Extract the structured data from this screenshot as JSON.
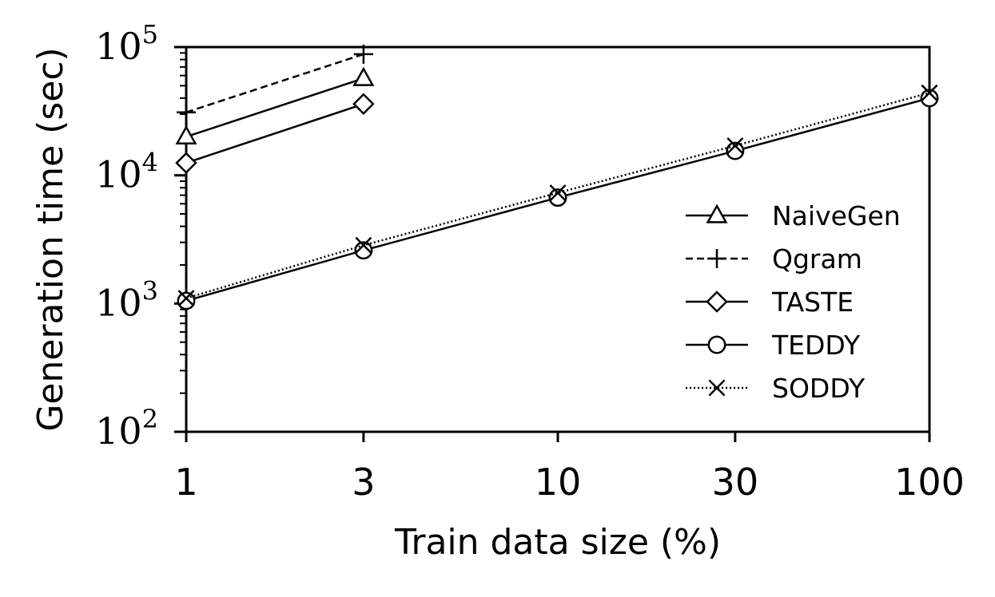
{
  "chart_data": {
    "type": "line",
    "xlabel": "Train data size (%)",
    "ylabel": "Generation time (sec)",
    "x_scale": "log",
    "y_scale": "log",
    "xlim": [
      1,
      100
    ],
    "ylim": [
      100,
      100000
    ],
    "x_ticks": [
      {
        "value": 1,
        "label": "1"
      },
      {
        "value": 3,
        "label": "3"
      },
      {
        "value": 10,
        "label": "10"
      },
      {
        "value": 30,
        "label": "30"
      },
      {
        "value": 100,
        "label": "100"
      }
    ],
    "y_ticks": [
      {
        "value": 100,
        "base": "10",
        "exp": "2"
      },
      {
        "value": 1000,
        "base": "10",
        "exp": "3"
      },
      {
        "value": 10000,
        "base": "10",
        "exp": "4"
      },
      {
        "value": 100000,
        "base": "10",
        "exp": "5"
      }
    ],
    "grid": false,
    "legend_position": "center-right",
    "series": [
      {
        "name": "NaiveGen",
        "marker": "triangle",
        "line": "solid",
        "x": [
          1,
          3
        ],
        "y": [
          20000,
          57000
        ]
      },
      {
        "name": "Qgram",
        "marker": "plus",
        "line": "dashed",
        "x": [
          1,
          3
        ],
        "y": [
          31000,
          88000
        ]
      },
      {
        "name": "TASTE",
        "marker": "diamond",
        "line": "solid",
        "x": [
          1,
          3
        ],
        "y": [
          12500,
          36000
        ]
      },
      {
        "name": "TEDDY",
        "marker": "circle",
        "line": "solid",
        "x": [
          1,
          3,
          10,
          30,
          100
        ],
        "y": [
          1050,
          2600,
          6700,
          15500,
          40000
        ]
      },
      {
        "name": "SODDY",
        "marker": "x",
        "line": "dotted",
        "x": [
          1,
          3,
          10,
          30,
          100
        ],
        "y": [
          1100,
          2850,
          7300,
          17000,
          44000
        ]
      }
    ],
    "colors": {
      "line": "#000000",
      "background": "#ffffff"
    }
  }
}
